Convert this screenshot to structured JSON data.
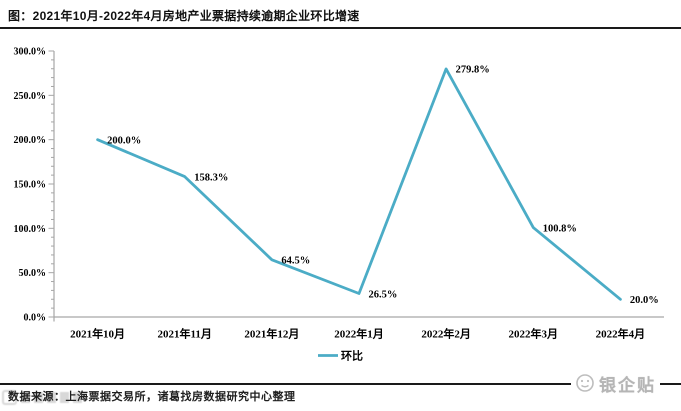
{
  "title": "图：2021年10月-2022年4月房地产业票据持续逾期企业环比增速",
  "footer": {
    "source": "数据来源：上海票据交易所，诸葛找房数据研究中心整理",
    "watermark": "银企贴"
  },
  "chart_data": {
    "type": "line",
    "title": "图：2021年10月-2022年4月房地产业票据持续逾期企业环比增速",
    "categories": [
      "2021年10月",
      "2021年11月",
      "2021年12月",
      "2022年1月",
      "2022年2月",
      "2022年3月",
      "2022年4月"
    ],
    "series": [
      {
        "name": "环比",
        "values": [
          200.0,
          158.3,
          64.5,
          26.5,
          279.8,
          100.8,
          20.0
        ]
      }
    ],
    "data_labels": [
      "200.0%",
      "158.3%",
      "64.5%",
      "26.5%",
      "279.8%",
      "100.8%",
      "20.0%"
    ],
    "xlabel": "",
    "ylabel": "",
    "ylim": [
      0,
      300
    ],
    "ytick_step": 50,
    "ytick_minor_step": 10,
    "ytick_labels": [
      "0.0%",
      "50.0%",
      "100.0%",
      "150.0%",
      "200.0%",
      "250.0%",
      "300.0%"
    ],
    "grid": false,
    "legend_position": "bottom",
    "line_color": "#4BACC6",
    "axis_color": "#a6a6a6",
    "label_color": "#000000"
  }
}
